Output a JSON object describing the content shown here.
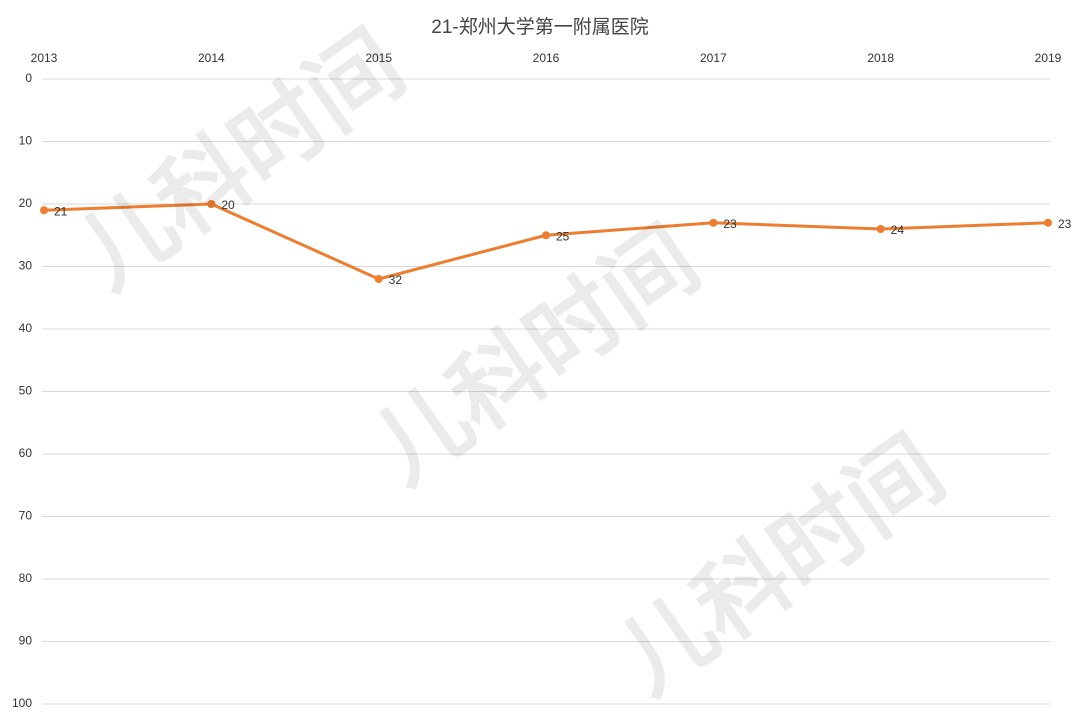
{
  "chart_data": {
    "type": "line",
    "title": "21-郑州大学第一附属医院",
    "categories": [
      "2013",
      "2014",
      "2015",
      "2016",
      "2017",
      "2018",
      "2019"
    ],
    "series": [
      {
        "color": "#ed7d31",
        "values": [
          21,
          20,
          32,
          25,
          23,
          24,
          23
        ]
      }
    ],
    "ylim": [
      0,
      100
    ],
    "yticks": [
      0,
      10,
      20,
      30,
      40,
      50,
      60,
      70,
      80,
      90,
      100
    ],
    "y_reversed": true,
    "x_axis_position": "top",
    "grid": true,
    "watermark": "儿科时间"
  }
}
